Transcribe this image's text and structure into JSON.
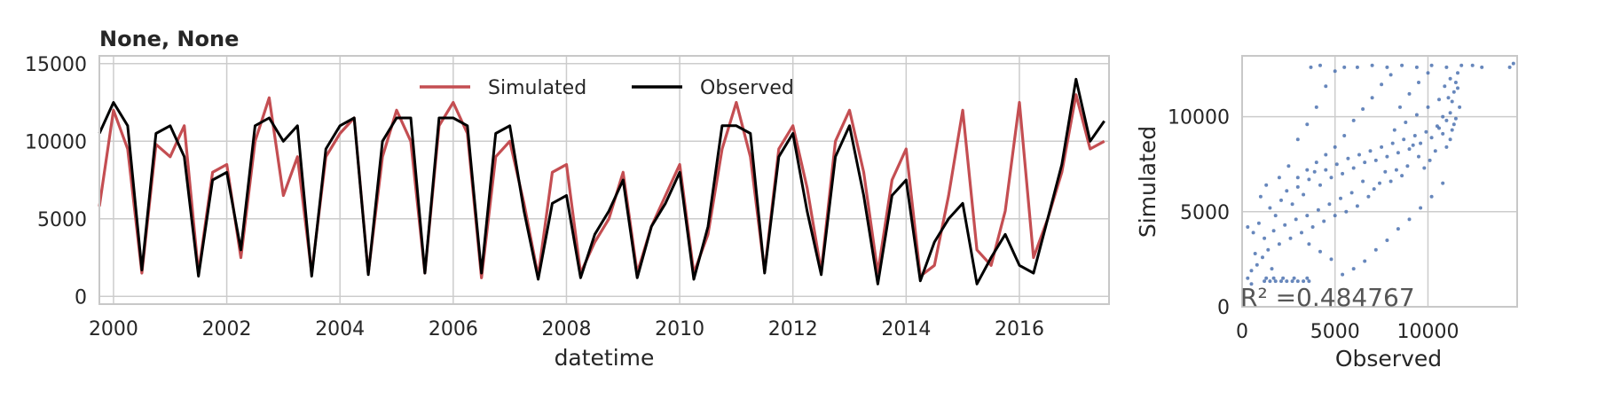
{
  "chart_data": [
    {
      "type": "line",
      "title": "None, None",
      "xlabel": "datetime",
      "ylabel": "",
      "xlim": [
        "1999-10-01",
        "2017-08-01"
      ],
      "ylim": [
        -500,
        15500
      ],
      "x_ticks": [
        "2000",
        "2002",
        "2004",
        "2006",
        "2008",
        "2010",
        "2012",
        "2014",
        "2016"
      ],
      "y_ticks": [
        0,
        5000,
        10000,
        15000
      ],
      "grid": true,
      "legend_position": "top-center",
      "series": [
        {
          "name": "Simulated",
          "color": "#c44e52",
          "x": [
            "1999-10-01",
            "2000-01-01",
            "2000-04-01",
            "2000-07-01",
            "2000-10-01",
            "2001-01-01",
            "2001-04-01",
            "2001-07-01",
            "2001-10-01",
            "2002-01-01",
            "2002-04-01",
            "2002-07-01",
            "2002-10-01",
            "2003-01-01",
            "2003-04-01",
            "2003-07-01",
            "2003-10-01",
            "2004-01-01",
            "2004-04-01",
            "2004-07-01",
            "2004-10-01",
            "2005-01-01",
            "2005-04-01",
            "2005-07-01",
            "2005-10-01",
            "2006-01-01",
            "2006-04-01",
            "2006-07-01",
            "2006-10-01",
            "2007-01-01",
            "2007-04-01",
            "2007-07-01",
            "2007-10-01",
            "2008-01-01",
            "2008-04-01",
            "2008-07-01",
            "2008-10-01",
            "2009-01-01",
            "2009-04-01",
            "2009-07-01",
            "2009-10-01",
            "2010-01-01",
            "2010-04-01",
            "2010-07-01",
            "2010-10-01",
            "2011-01-01",
            "2011-04-01",
            "2011-07-01",
            "2011-10-01",
            "2012-01-01",
            "2012-04-01",
            "2012-07-01",
            "2012-10-01",
            "2013-01-01",
            "2013-04-01",
            "2013-07-01",
            "2013-10-01",
            "2014-01-01",
            "2014-04-01",
            "2014-07-01",
            "2014-10-01",
            "2015-01-01",
            "2015-04-01",
            "2015-07-01",
            "2015-10-01",
            "2016-01-01",
            "2016-04-01",
            "2016-07-01",
            "2016-10-01",
            "2017-01-01",
            "2017-04-01",
            "2017-07-01"
          ],
          "values": [
            5800,
            12000,
            9500,
            1500,
            9800,
            9000,
            11000,
            1500,
            8000,
            8500,
            2500,
            10000,
            12800,
            6500,
            9000,
            1500,
            9000,
            10500,
            11500,
            1500,
            9000,
            12000,
            10000,
            1500,
            11000,
            12500,
            10500,
            1200,
            9000,
            10000,
            6000,
            1300,
            8000,
            8500,
            1500,
            3500,
            5000,
            8000,
            1500,
            4500,
            6500,
            8500,
            1500,
            4000,
            9500,
            12500,
            9000,
            1600,
            9500,
            11000,
            7000,
            1600,
            10000,
            12000,
            8000,
            1500,
            7500,
            9500,
            1300,
            2000,
            6500,
            12000,
            3000,
            2000,
            5500,
            12500,
            2500,
            5000,
            8000,
            13000,
            9500,
            10000
          ]
        },
        {
          "name": "Observed",
          "color": "#000000",
          "x": [
            "1999-10-01",
            "2000-01-01",
            "2000-04-01",
            "2000-07-01",
            "2000-10-01",
            "2001-01-01",
            "2001-04-01",
            "2001-07-01",
            "2001-10-01",
            "2002-01-01",
            "2002-04-01",
            "2002-07-01",
            "2002-10-01",
            "2003-01-01",
            "2003-04-01",
            "2003-07-01",
            "2003-10-01",
            "2004-01-01",
            "2004-04-01",
            "2004-07-01",
            "2004-10-01",
            "2005-01-01",
            "2005-04-01",
            "2005-07-01",
            "2005-10-01",
            "2006-01-01",
            "2006-04-01",
            "2006-07-01",
            "2006-10-01",
            "2007-01-01",
            "2007-04-01",
            "2007-07-01",
            "2007-10-01",
            "2008-01-01",
            "2008-04-01",
            "2008-07-01",
            "2008-10-01",
            "2009-01-01",
            "2009-04-01",
            "2009-07-01",
            "2009-10-01",
            "2010-01-01",
            "2010-04-01",
            "2010-07-01",
            "2010-10-01",
            "2011-01-01",
            "2011-04-01",
            "2011-07-01",
            "2011-10-01",
            "2012-01-01",
            "2012-04-01",
            "2012-07-01",
            "2012-10-01",
            "2013-01-01",
            "2013-04-01",
            "2013-07-01",
            "2013-10-01",
            "2014-01-01",
            "2014-04-01",
            "2014-07-01",
            "2014-10-01",
            "2015-01-01",
            "2015-04-01",
            "2015-07-01",
            "2015-10-01",
            "2016-01-01",
            "2016-04-01",
            "2016-07-01",
            "2016-10-01",
            "2017-01-01",
            "2017-04-01",
            "2017-07-01"
          ],
          "values": [
            10500,
            12500,
            11000,
            1700,
            10500,
            11000,
            9000,
            1300,
            7500,
            8000,
            3000,
            11000,
            11500,
            10000,
            11000,
            1300,
            9500,
            11000,
            11500,
            1400,
            10000,
            11500,
            11500,
            1500,
            11500,
            11500,
            11000,
            1500,
            10500,
            11000,
            5500,
            1100,
            6000,
            6500,
            1200,
            4000,
            5500,
            7500,
            1200,
            4500,
            6000,
            8000,
            1100,
            4500,
            11000,
            11000,
            10500,
            1500,
            9000,
            10500,
            5500,
            1400,
            9000,
            11000,
            6500,
            800,
            6500,
            7500,
            1000,
            3500,
            5000,
            6000,
            800,
            2500,
            4000,
            2000,
            1500,
            5000,
            8500,
            14000,
            10000,
            11300
          ]
        }
      ]
    },
    {
      "type": "scatter",
      "title": "",
      "xlabel": "Observed",
      "ylabel": "Simulated",
      "xlim": [
        0,
        14800
      ],
      "ylim": [
        0,
        13200
      ],
      "x_ticks": [
        0,
        5000,
        10000
      ],
      "y_ticks": [
        0,
        5000,
        10000
      ],
      "grid": true,
      "color": "#4c72b0",
      "annotation": "R² =0.484767",
      "points": [
        [
          300,
          4200
        ],
        [
          600,
          3900
        ],
        [
          900,
          4400
        ],
        [
          1200,
          3600
        ],
        [
          1500,
          5200
        ],
        [
          1800,
          4800
        ],
        [
          2100,
          5600
        ],
        [
          2400,
          6100
        ],
        [
          2700,
          5400
        ],
        [
          3000,
          6300
        ],
        [
          3300,
          5900
        ],
        [
          3600,
          6700
        ],
        [
          3900,
          7100
        ],
        [
          4200,
          6400
        ],
        [
          4500,
          7200
        ],
        [
          4800,
          6800
        ],
        [
          5100,
          7500
        ],
        [
          5400,
          7000
        ],
        [
          5700,
          7800
        ],
        [
          6000,
          7300
        ],
        [
          6300,
          8000
        ],
        [
          6600,
          7600
        ],
        [
          6900,
          8200
        ],
        [
          7200,
          7700
        ],
        [
          7500,
          8400
        ],
        [
          7800,
          7900
        ],
        [
          8100,
          8600
        ],
        [
          8400,
          8100
        ],
        [
          8700,
          8800
        ],
        [
          9000,
          8300
        ],
        [
          9300,
          9000
        ],
        [
          9600,
          8600
        ],
        [
          9900,
          9200
        ],
        [
          10200,
          8900
        ],
        [
          10500,
          9500
        ],
        [
          10800,
          9100
        ],
        [
          11000,
          9800
        ],
        [
          11200,
          10200
        ],
        [
          11300,
          10800
        ],
        [
          11400,
          11300
        ],
        [
          11500,
          11800
        ],
        [
          11600,
          12300
        ],
        [
          11400,
          9600
        ],
        [
          11200,
          8800
        ],
        [
          11000,
          8400
        ],
        [
          10800,
          10000
        ],
        [
          10600,
          9400
        ],
        [
          10400,
          8200
        ],
        [
          10100,
          7700
        ],
        [
          9800,
          7300
        ],
        [
          9500,
          7900
        ],
        [
          9200,
          8500
        ],
        [
          8900,
          7400
        ],
        [
          8600,
          6900
        ],
        [
          8300,
          7200
        ],
        [
          8000,
          6600
        ],
        [
          7700,
          7100
        ],
        [
          7400,
          6500
        ],
        [
          7100,
          6200
        ],
        [
          6800,
          5800
        ],
        [
          6500,
          6600
        ],
        [
          6200,
          5300
        ],
        [
          5900,
          6000
        ],
        [
          5600,
          5000
        ],
        [
          5300,
          5700
        ],
        [
          5000,
          4800
        ],
        [
          4700,
          5400
        ],
        [
          4400,
          4500
        ],
        [
          4100,
          5100
        ],
        [
          3800,
          4200
        ],
        [
          3500,
          4800
        ],
        [
          3200,
          3900
        ],
        [
          2900,
          4600
        ],
        [
          2600,
          3600
        ],
        [
          2300,
          4300
        ],
        [
          2000,
          3300
        ],
        [
          1700,
          4000
        ],
        [
          1400,
          3000
        ],
        [
          1100,
          2600
        ],
        [
          800,
          2200
        ],
        [
          500,
          1900
        ],
        [
          300,
          1500
        ],
        [
          1200,
          1350
        ],
        [
          1500,
          1350
        ],
        [
          1800,
          1350
        ],
        [
          2100,
          1350
        ],
        [
          2400,
          1350
        ],
        [
          2700,
          1350
        ],
        [
          3000,
          1350
        ],
        [
          3300,
          1350
        ],
        [
          3600,
          1350
        ],
        [
          1300,
          1500
        ],
        [
          1700,
          1500
        ],
        [
          2200,
          1500
        ],
        [
          2800,
          1500
        ],
        [
          3500,
          1500
        ],
        [
          500,
          1200
        ],
        [
          700,
          2800
        ],
        [
          1000,
          5800
        ],
        [
          1300,
          6400
        ],
        [
          1600,
          2000
        ],
        [
          2000,
          6800
        ],
        [
          2500,
          7400
        ],
        [
          3000,
          8800
        ],
        [
          3500,
          9600
        ],
        [
          4000,
          10500
        ],
        [
          4500,
          11600
        ],
        [
          5000,
          12400
        ],
        [
          3700,
          12600
        ],
        [
          4200,
          12700
        ],
        [
          5500,
          12600
        ],
        [
          6200,
          12600
        ],
        [
          7000,
          12700
        ],
        [
          7800,
          12600
        ],
        [
          8600,
          12700
        ],
        [
          9400,
          12600
        ],
        [
          10200,
          12700
        ],
        [
          11000,
          12600
        ],
        [
          11800,
          12700
        ],
        [
          12400,
          12700
        ],
        [
          12900,
          12600
        ],
        [
          14400,
          12600
        ],
        [
          14600,
          12800
        ],
        [
          6000,
          9800
        ],
        [
          6500,
          10400
        ],
        [
          7000,
          11000
        ],
        [
          7500,
          11700
        ],
        [
          8000,
          12200
        ],
        [
          5500,
          9000
        ],
        [
          5000,
          8400
        ],
        [
          4500,
          8000
        ],
        [
          4000,
          7600
        ],
        [
          3500,
          7200
        ],
        [
          3000,
          6800
        ],
        [
          8500,
          10500
        ],
        [
          9000,
          11200
        ],
        [
          9500,
          11800
        ],
        [
          10000,
          12300
        ],
        [
          7200,
          3000
        ],
        [
          7800,
          3500
        ],
        [
          8400,
          4100
        ],
        [
          9000,
          4600
        ],
        [
          9600,
          5200
        ],
        [
          10200,
          5800
        ],
        [
          10800,
          6500
        ],
        [
          6600,
          2400
        ],
        [
          6000,
          2000
        ],
        [
          5400,
          1700
        ],
        [
          4800,
          2500
        ],
        [
          4200,
          2900
        ],
        [
          3600,
          3300
        ],
        [
          8200,
          9300
        ],
        [
          8800,
          9700
        ],
        [
          9400,
          10100
        ],
        [
          10000,
          10500
        ],
        [
          10600,
          10900
        ],
        [
          11100,
          11000
        ],
        [
          11300,
          9300
        ],
        [
          11500,
          9900
        ],
        [
          11700,
          10500
        ],
        [
          11600,
          11500
        ],
        [
          11200,
          12000
        ],
        [
          10900,
          11600
        ]
      ]
    }
  ]
}
